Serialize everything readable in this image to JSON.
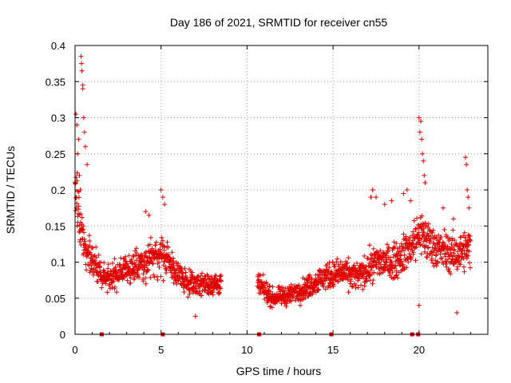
{
  "chart_data": {
    "type": "scatter",
    "title": "Day 186 of 2021, SRMTID for receiver cn55",
    "xlabel": "GPS time / hours",
    "ylabel": "SRMTID / TECUs",
    "xlim": [
      0,
      24
    ],
    "ylim": [
      0,
      0.4
    ],
    "x_ticks": [
      0,
      5,
      10,
      15,
      20
    ],
    "x_tick_labels": [
      "0",
      "5",
      "10",
      "15",
      "20"
    ],
    "y_ticks": [
      0,
      0.05,
      0.1,
      0.15,
      0.2,
      0.25,
      0.3,
      0.35,
      0.4
    ],
    "y_tick_labels": [
      "0",
      "0.05",
      "0.1",
      "0.15",
      "0.2",
      "0.25",
      "0.3",
      "0.35",
      "0.4"
    ],
    "grid": true,
    "marker": "plus",
    "colors": {
      "series": "#e00000",
      "grid": "#a0a0a0",
      "axis": "#000000"
    },
    "legend": "none",
    "gap_hours": [
      8.5,
      10.6
    ],
    "zero_markers_x": [
      1.55,
      5.1,
      10.7,
      14.9,
      19.6,
      19.95
    ],
    "trend": [
      [
        0.0,
        0.2
      ],
      [
        0.3,
        0.15
      ],
      [
        0.6,
        0.12
      ],
      [
        1.0,
        0.1
      ],
      [
        1.5,
        0.08
      ],
      [
        2.0,
        0.08
      ],
      [
        3.0,
        0.09
      ],
      [
        4.0,
        0.1
      ],
      [
        5.0,
        0.11
      ],
      [
        5.5,
        0.1
      ],
      [
        6.0,
        0.08
      ],
      [
        7.0,
        0.07
      ],
      [
        8.0,
        0.07
      ],
      [
        8.5,
        0.07
      ],
      [
        10.6,
        0.07
      ],
      [
        11.5,
        0.05
      ],
      [
        12.5,
        0.055
      ],
      [
        13.5,
        0.065
      ],
      [
        14.5,
        0.08
      ],
      [
        15.5,
        0.085
      ],
      [
        16.5,
        0.08
      ],
      [
        17.5,
        0.1
      ],
      [
        18.5,
        0.1
      ],
      [
        19.5,
        0.12
      ],
      [
        20.0,
        0.14
      ],
      [
        21.0,
        0.12
      ],
      [
        22.0,
        0.11
      ],
      [
        23.0,
        0.12
      ]
    ],
    "spikes": [
      [
        0.05,
        0.305
      ],
      [
        0.1,
        0.29
      ],
      [
        0.15,
        0.25
      ],
      [
        0.2,
        0.27
      ],
      [
        0.25,
        0.22
      ],
      [
        0.35,
        0.385
      ],
      [
        0.37,
        0.375
      ],
      [
        0.4,
        0.365
      ],
      [
        0.45,
        0.345
      ],
      [
        0.45,
        0.34
      ],
      [
        0.5,
        0.3
      ],
      [
        0.55,
        0.28
      ],
      [
        0.6,
        0.26
      ],
      [
        0.7,
        0.235
      ],
      [
        0.3,
        0.2
      ],
      [
        5.0,
        0.2
      ],
      [
        5.1,
        0.19
      ],
      [
        5.2,
        0.18
      ],
      [
        4.1,
        0.17
      ],
      [
        4.3,
        0.165
      ],
      [
        17.2,
        0.19
      ],
      [
        17.3,
        0.2
      ],
      [
        17.5,
        0.19
      ],
      [
        18.0,
        0.18
      ],
      [
        18.4,
        0.185
      ],
      [
        19.1,
        0.195
      ],
      [
        19.3,
        0.2
      ],
      [
        19.5,
        0.185
      ],
      [
        20.0,
        0.3
      ],
      [
        20.05,
        0.28
      ],
      [
        20.1,
        0.295
      ],
      [
        20.15,
        0.27
      ],
      [
        20.2,
        0.25
      ],
      [
        20.25,
        0.24
      ],
      [
        20.3,
        0.22
      ],
      [
        20.35,
        0.21
      ],
      [
        22.7,
        0.245
      ],
      [
        22.75,
        0.235
      ],
      [
        22.8,
        0.2
      ],
      [
        22.85,
        0.19
      ],
      [
        22.9,
        0.175
      ],
      [
        21.4,
        0.175
      ],
      [
        22.0,
        0.16
      ],
      [
        20.0,
        0.04
      ],
      [
        22.2,
        0.03
      ],
      [
        7.0,
        0.025
      ]
    ],
    "sample_step_hours": 0.012,
    "spread": 0.035
  }
}
